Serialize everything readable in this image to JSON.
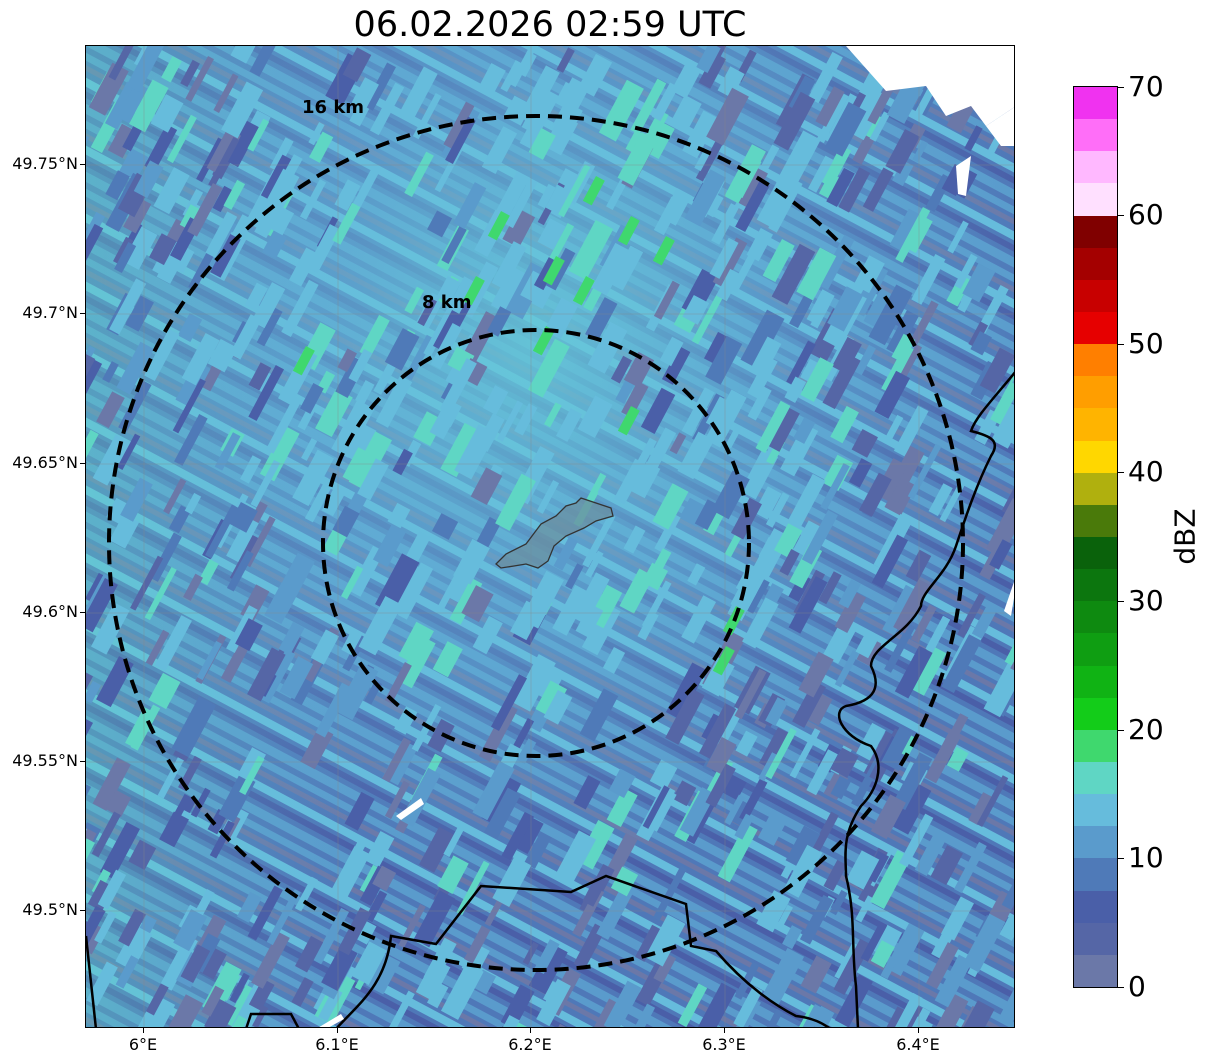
{
  "title": "06.02.2026 02:59 UTC",
  "map": {
    "rings": [
      {
        "label": "16 km",
        "radius_km": 16
      },
      {
        "label": "8 km",
        "radius_km": 8
      }
    ],
    "lat_ticks": [
      "49.75°N",
      "49.7°N",
      "49.65°N",
      "49.6°N",
      "49.55°N",
      "49.5°N"
    ],
    "lon_ticks": [
      "6°E",
      "6.1°E",
      "6.2°E",
      "6.3°E",
      "6.4°E"
    ]
  },
  "colorbar": {
    "label": "dBZ",
    "ticks": [
      "0",
      "10",
      "20",
      "30",
      "40",
      "50",
      "60",
      "70"
    ],
    "colors": [
      "#6b78a8",
      "#5566a6",
      "#4a5fa8",
      "#4f7ab8",
      "#5a9bcc",
      "#66bcdc",
      "#5fd6c4",
      "#3fd86e",
      "#13cc19",
      "#10b314",
      "#0f9e12",
      "#0e8a10",
      "#0c760e",
      "#0a620b",
      "#4a7a0a",
      "#b0b00e",
      "#ffd700",
      "#ffb400",
      "#ff9e00",
      "#ff7f00",
      "#e60000",
      "#c80000",
      "#a40000",
      "#800000",
      "#ffe0ff",
      "#ffb8ff",
      "#ff6ef8",
      "#f032f0"
    ]
  }
}
